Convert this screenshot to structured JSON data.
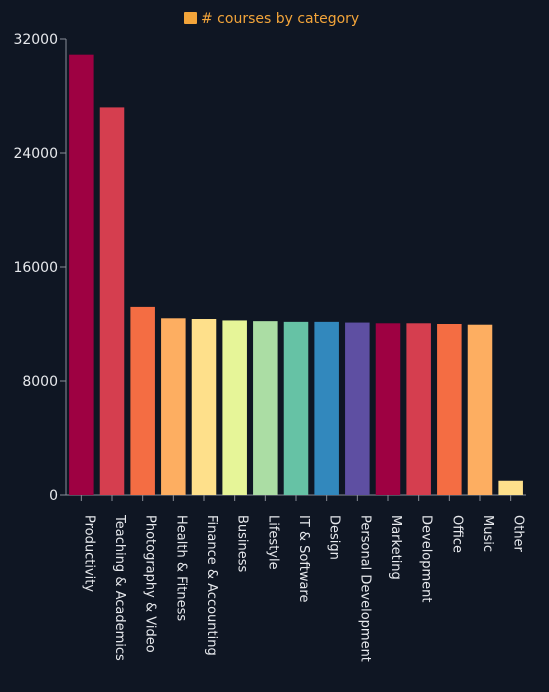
{
  "chart_data": {
    "type": "bar",
    "legend": {
      "label": "# courses by category",
      "color": "#f2a43a",
      "placement": "top-center"
    },
    "categories": [
      "Productivity",
      "Teaching & Academics",
      "Photography & Video",
      "Health & Fitness",
      "Finance & Accounting",
      "Business",
      "Lifestyle",
      "IT & Software",
      "Design",
      "Personal Development",
      "Marketing",
      "Development",
      "Office",
      "Music",
      "Other"
    ],
    "series": [
      {
        "name": "# courses by category",
        "values": [
          30900,
          27200,
          13200,
          12400,
          12350,
          12250,
          12200,
          12150,
          12150,
          12100,
          12050,
          12050,
          12000,
          11950,
          1000
        ]
      }
    ],
    "bar_colors": [
      "#9e0142",
      "#d53e4f",
      "#f46d43",
      "#fdae61",
      "#fee08b",
      "#e6f598",
      "#abdda4",
      "#66c2a5",
      "#3288bd",
      "#5e4fa2",
      "#9e0142",
      "#d53e4f",
      "#f46d43",
      "#fdae61",
      "#fee08b"
    ],
    "yticks": [
      "0",
      "8000",
      "16000",
      "24000",
      "32000"
    ],
    "ylim": [
      0,
      32000
    ],
    "grid": false
  }
}
